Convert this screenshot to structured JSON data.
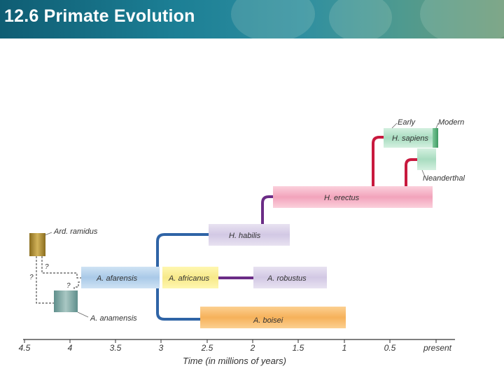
{
  "header": {
    "title": "12.6 Primate Evolution"
  },
  "colors": {
    "header_bg": "#1c7f95",
    "line_blue": "#2f64a6",
    "line_purple": "#6b2c86",
    "line_red": "#c8193e",
    "line_green": "#3f9a62"
  },
  "diagram": {
    "species": {
      "ard_ramidus": "Ard. ramidus",
      "a_anamensis": "A. anamensis",
      "a_afarensis": "A. afarensis",
      "a_africanus": "A. africanus",
      "a_robustus": "A. robustus",
      "a_boisei": "A. boisei",
      "h_habilis": "H. habilis",
      "h_erectus": "H. erectus",
      "h_sapiens": "H. sapiens",
      "early": "Early",
      "modern": "Modern",
      "neanderthal": "Neanderthal"
    },
    "question_marks": [
      "?",
      "?",
      "?"
    ],
    "axis": {
      "ticks": [
        "4.5",
        "4",
        "3.5",
        "3",
        "2.5",
        "2",
        "1.5",
        "1",
        "0.5",
        "present"
      ],
      "label": "Time (in millions of years)"
    }
  }
}
